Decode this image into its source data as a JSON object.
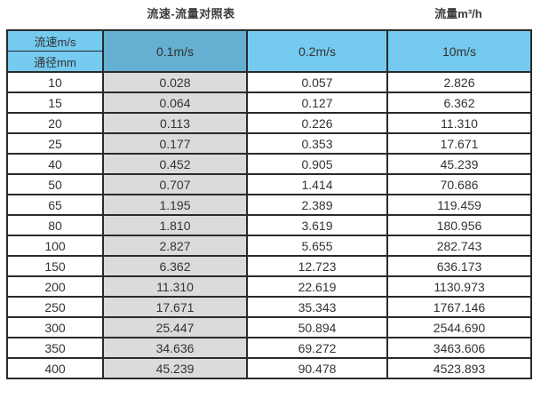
{
  "page": {
    "title": "流速-流量对照表",
    "unit_label": "流量m³/h"
  },
  "colors": {
    "header_blue": "#74caef",
    "header_dark_blue": "#64afd2",
    "gray_column": "#dbdbdb",
    "border": "#2a2a2a",
    "text": "#333333"
  },
  "chart_data": {
    "type": "table",
    "title": "流速-流量对照表",
    "flow_unit_label": "流量m³/h",
    "corner": {
      "top": "流速m/s",
      "bottom": "通径mm"
    },
    "velocity_columns": [
      "0.1m/s",
      "0.2m/s",
      "10m/s"
    ],
    "diameter_column_values_mm": [
      10,
      15,
      20,
      25,
      40,
      50,
      65,
      80,
      100,
      150,
      200,
      250,
      300,
      350,
      400
    ],
    "rows": [
      [
        "10",
        "0.028",
        "0.057",
        "2.826"
      ],
      [
        "15",
        "0.064",
        "0.127",
        "6.362"
      ],
      [
        "20",
        "0.113",
        "0.226",
        "11.310"
      ],
      [
        "25",
        "0.177",
        "0.353",
        "17.671"
      ],
      [
        "40",
        "0.452",
        "0.905",
        "45.239"
      ],
      [
        "50",
        "0.707",
        "1.414",
        "70.686"
      ],
      [
        "65",
        "1.195",
        "2.389",
        "119.459"
      ],
      [
        "80",
        "1.810",
        "3.619",
        "180.956"
      ],
      [
        "100",
        "2.827",
        "5.655",
        "282.743"
      ],
      [
        "150",
        "6.362",
        "12.723",
        "636.173"
      ],
      [
        "200",
        "11.310",
        "22.619",
        "1130.973"
      ],
      [
        "250",
        "17.671",
        "35.343",
        "1767.146"
      ],
      [
        "300",
        "25.447",
        "50.894",
        "2544.690"
      ],
      [
        "350",
        "34.636",
        "69.272",
        "3463.606"
      ],
      [
        "400",
        "45.239",
        "90.478",
        "4523.893"
      ]
    ]
  }
}
